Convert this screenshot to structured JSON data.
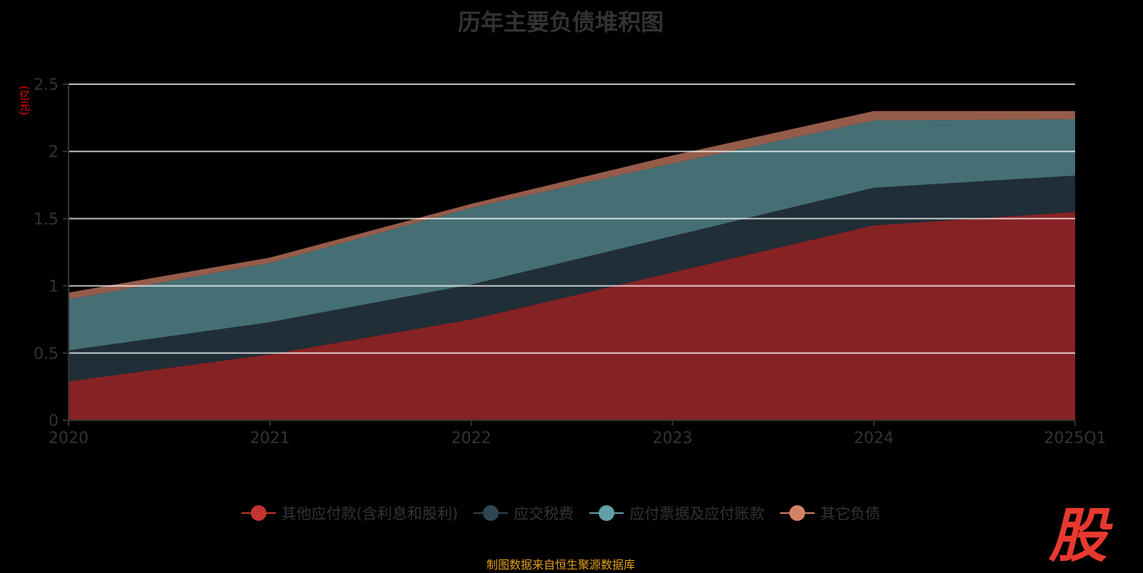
{
  "chart_data": {
    "type": "area",
    "stacked": true,
    "title": "历年主要负债堆积图",
    "ylabel": "(亿元)",
    "xlabel": "",
    "ylim": [
      0,
      2.5
    ],
    "yticks": [
      "0",
      "0.5",
      "1",
      "1.5",
      "2",
      "2.5"
    ],
    "categories": [
      "2020",
      "2021",
      "2022",
      "2023",
      "2024",
      "2025Q1"
    ],
    "grid": true,
    "legend_position": "bottom",
    "series": [
      {
        "name": "其他应付款(含利息和股利)",
        "color": "#c23531",
        "fill": "#872224",
        "values": [
          0.29,
          0.49,
          0.75,
          1.1,
          1.45,
          1.55
        ]
      },
      {
        "name": "应交税费",
        "color": "#2f4554",
        "fill": "#202e38",
        "values": [
          0.23,
          0.24,
          0.26,
          0.27,
          0.28,
          0.27
        ]
      },
      {
        "name": "应付票据及应付账款",
        "color": "#61a0a8",
        "fill": "#456f75",
        "values": [
          0.38,
          0.44,
          0.57,
          0.54,
          0.5,
          0.42
        ]
      },
      {
        "name": "其它负债",
        "color": "#d48265",
        "fill": "#955c4a",
        "values": [
          0.05,
          0.04,
          0.03,
          0.06,
          0.07,
          0.06
        ]
      }
    ]
  },
  "footer": {
    "source": "制图数据来自恒生聚源数据库",
    "logo": "股"
  }
}
